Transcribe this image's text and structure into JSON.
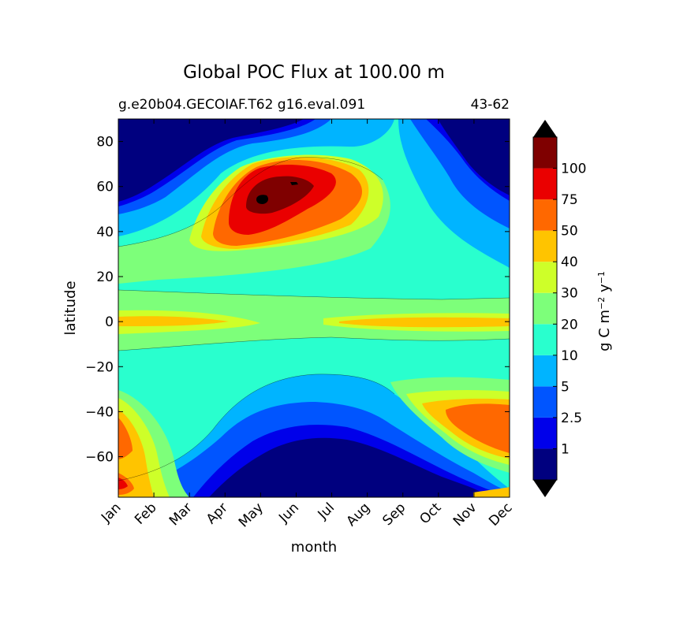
{
  "chart_data": {
    "type": "heatmap",
    "title": "Global POC Flux at 100.00 m",
    "subtitle_left": "g.e20b04.GECOIAF.T62 g16.eval.091",
    "subtitle_right": "43-62",
    "xlabel": "month",
    "ylabel": "latitude",
    "x_tick_labels": [
      "Jan",
      "Feb",
      "Mar",
      "Apr",
      "May",
      "Jun",
      "Jul",
      "Aug",
      "Sep",
      "Oct",
      "Nov",
      "Dec"
    ],
    "y_ticks": [
      -60,
      -40,
      -20,
      0,
      20,
      40,
      60,
      80
    ],
    "ylim": [
      -78,
      90
    ],
    "colorbar": {
      "label": "g C m^-2 y^-1",
      "label_base": "g C m",
      "label_exp1": "−2",
      "label_mid": " y",
      "label_exp2": "−1",
      "levels": [
        0,
        1,
        2.5,
        5,
        10,
        20,
        30,
        40,
        50,
        75,
        100,
        125
      ],
      "tick_values": [
        1,
        2.5,
        5,
        10,
        20,
        30,
        40,
        50,
        75,
        100
      ],
      "tick_labels": [
        "1",
        "2.5",
        "5",
        "10",
        "20",
        "30",
        "40",
        "50",
        "75",
        "100"
      ],
      "colors": [
        "#00007f",
        "#0000ea",
        "#0055ff",
        "#00b4ff",
        "#29ffce",
        "#7dff7a",
        "#ceff29",
        "#ffc400",
        "#ff6800",
        "#ea0000",
        "#7f0000"
      ],
      "extend": "both"
    }
  }
}
